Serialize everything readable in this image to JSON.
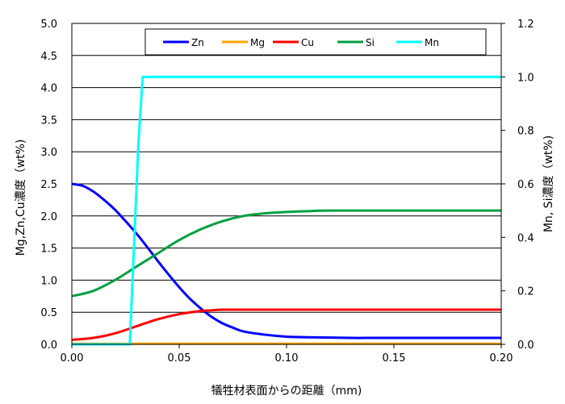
{
  "chart_data": {
    "type": "line",
    "xlabel": "犠牲材表面からの距離（mm)",
    "ylabel_left": "Mg,Zn,Cu濃度（wt%)",
    "ylabel_right": "Mn, Si濃度（wt%)",
    "xlim": [
      0,
      0.2
    ],
    "ylim_left": [
      0,
      5.0
    ],
    "ylim_right": [
      0,
      1.2
    ],
    "x_ticks": [
      "0.00",
      "0.05",
      "0.10",
      "0.15",
      "0.20"
    ],
    "y_left_ticks": [
      "0.0",
      "0.5",
      "1.0",
      "1.5",
      "2.0",
      "2.5",
      "3.0",
      "3.5",
      "4.0",
      "4.5",
      "5.0"
    ],
    "y_right_ticks": [
      "0.0",
      "0.2",
      "0.4",
      "0.6",
      "0.8",
      "1.0",
      "1.2"
    ],
    "grid": "horizontal",
    "legend": "top-right",
    "series": [
      {
        "name": "Zn",
        "axis": "left",
        "color": "#0000ff",
        "x": [
          0,
          0.005,
          0.01,
          0.015,
          0.02,
          0.025,
          0.03,
          0.035,
          0.04,
          0.045,
          0.05,
          0.055,
          0.06,
          0.065,
          0.07,
          0.075,
          0.08,
          0.09,
          0.1,
          0.11,
          0.12,
          0.13,
          0.14,
          0.15,
          0.2
        ],
        "y": [
          2.5,
          2.47,
          2.38,
          2.25,
          2.1,
          1.92,
          1.73,
          1.52,
          1.3,
          1.09,
          0.89,
          0.71,
          0.56,
          0.43,
          0.33,
          0.26,
          0.2,
          0.15,
          0.12,
          0.11,
          0.105,
          0.1,
          0.1,
          0.1,
          0.1
        ]
      },
      {
        "name": "Mg",
        "axis": "left",
        "color": "#ffa500",
        "x": [
          0,
          0.2
        ],
        "y": [
          0.01,
          0.01
        ]
      },
      {
        "name": "Cu",
        "axis": "left",
        "color": "#ff0000",
        "x": [
          0,
          0.01,
          0.02,
          0.03,
          0.04,
          0.05,
          0.06,
          0.065,
          0.07,
          0.08,
          0.1,
          0.15,
          0.2
        ],
        "y": [
          0.07,
          0.1,
          0.17,
          0.28,
          0.39,
          0.47,
          0.52,
          0.53,
          0.54,
          0.54,
          0.54,
          0.54,
          0.54
        ]
      },
      {
        "name": "Si",
        "axis": "right",
        "color": "#00a040",
        "x": [
          0,
          0.01,
          0.02,
          0.03,
          0.04,
          0.05,
          0.06,
          0.07,
          0.08,
          0.09,
          0.1,
          0.11,
          0.12,
          0.15,
          0.2
        ],
        "y": [
          0.18,
          0.2,
          0.24,
          0.29,
          0.34,
          0.39,
          0.43,
          0.46,
          0.48,
          0.49,
          0.495,
          0.498,
          0.5,
          0.5,
          0.5
        ]
      },
      {
        "name": "Mn",
        "axis": "right",
        "color": "#00ffff",
        "x": [
          0,
          0.027,
          0.031,
          0.033,
          0.035,
          0.2
        ],
        "y": [
          0,
          0,
          0.75,
          1.0,
          1.0,
          1.0
        ]
      }
    ]
  }
}
